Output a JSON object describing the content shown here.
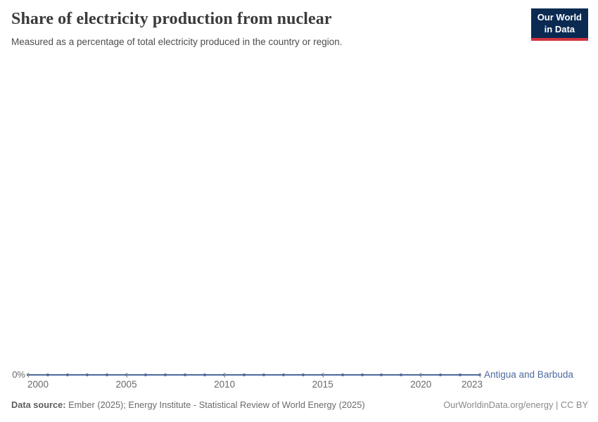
{
  "header": {
    "title": "Share of electricity production from nuclear",
    "subtitle": "Measured as a percentage of total electricity produced in the country or region."
  },
  "logo": {
    "line1": "Our World",
    "line2": "in Data",
    "bg_color": "#0a2a52",
    "accent_color": "#d0333e"
  },
  "chart_data": {
    "type": "line",
    "title": "Share of electricity production from nuclear",
    "subtitle": "Measured as a percentage of total electricity produced in the country or region.",
    "entity": "Antigua and Barbuda",
    "unit": "%",
    "x": [
      2000,
      2001,
      2002,
      2003,
      2004,
      2005,
      2006,
      2007,
      2008,
      2009,
      2010,
      2011,
      2012,
      2013,
      2014,
      2015,
      2016,
      2017,
      2018,
      2019,
      2020,
      2021,
      2022,
      2023
    ],
    "series": [
      {
        "name": "Antigua and Barbuda",
        "values": [
          0,
          0,
          0,
          0,
          0,
          0,
          0,
          0,
          0,
          0,
          0,
          0,
          0,
          0,
          0,
          0,
          0,
          0,
          0,
          0,
          0,
          0,
          0,
          0
        ]
      }
    ],
    "y_tick_labels": [
      "0%"
    ],
    "x_tick_labels": [
      "2000",
      "2005",
      "2010",
      "2015",
      "2020",
      "2023"
    ],
    "ylim": [
      0,
      0
    ],
    "grid": false,
    "legend_position": "right-of-line",
    "line_color": "#4c6a9c",
    "label_color": "#4d6a9f",
    "axis_text_color": "#686868"
  },
  "footer": {
    "data_source_label": "Data source:",
    "data_source_value": " Ember (2025); Energy Institute - Statistical Review of World Energy (2025)",
    "attribution": "OurWorldinData.org/energy | CC BY"
  }
}
